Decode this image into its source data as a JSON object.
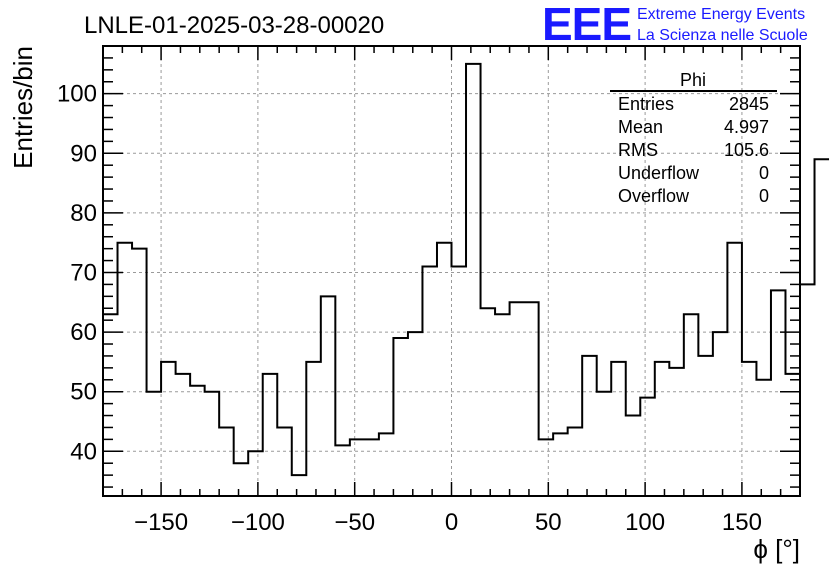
{
  "header": {
    "run_title": "LNLE-01-2025-03-28-00020",
    "logo_text": "EEE",
    "org_line1": "Extreme Energy Events",
    "org_line2": "La Scienza nelle Scuole"
  },
  "colors": {
    "logo": "#1a1aff",
    "hist_line": "#000000",
    "grid": "#9a9a9a"
  },
  "stats": {
    "title": "Phi",
    "rows": [
      {
        "label": "Entries",
        "value": "2845"
      },
      {
        "label": "Mean",
        "value": "4.997"
      },
      {
        "label": "RMS",
        "value": "105.6"
      },
      {
        "label": "Underflow",
        "value": "0"
      },
      {
        "label": "Overflow",
        "value": "0"
      }
    ]
  },
  "chart_data": {
    "type": "histogram",
    "title": "LNLE-01-2025-03-28-00020",
    "xlabel": "ϕ [°]",
    "ylabel": "Entries/bin",
    "xlim": [
      -180,
      180
    ],
    "ylim": [
      32.5,
      108
    ],
    "bin_width": 7.5,
    "x_ticks": [
      -150,
      -100,
      -50,
      0,
      50,
      100,
      150
    ],
    "x_tick_labels": [
      "−150",
      "−100",
      "−50",
      "0",
      "50",
      "100",
      "150"
    ],
    "y_ticks": [
      40,
      50,
      60,
      70,
      80,
      90,
      100
    ],
    "y_tick_labels": [
      "40",
      "50",
      "60",
      "70",
      "80",
      "90",
      "100"
    ],
    "grid": true,
    "values": [
      63,
      75,
      74,
      50,
      55,
      53,
      51,
      50,
      44,
      38,
      40,
      53,
      44,
      36,
      55,
      66,
      41,
      42,
      42,
      43,
      59,
      60,
      71,
      75,
      71,
      105,
      64,
      63,
      65,
      65,
      42,
      43,
      44,
      56,
      50,
      55,
      46,
      49,
      55,
      54,
      63,
      56,
      60,
      75,
      55,
      52,
      67,
      53,
      68,
      89
    ]
  }
}
